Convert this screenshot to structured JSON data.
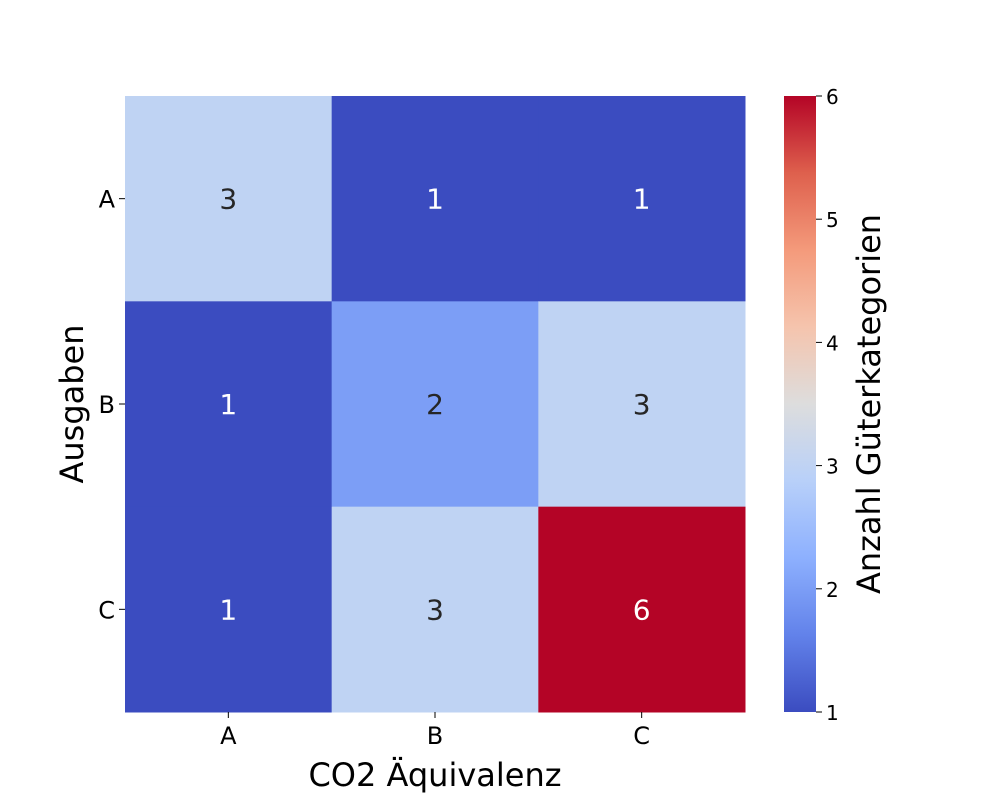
{
  "chart_data": {
    "type": "heatmap",
    "title": "",
    "xlabel": "CO2 Äquivalenz",
    "ylabel": "Ausgaben",
    "x_categories": [
      "A",
      "B",
      "C"
    ],
    "y_categories": [
      "A",
      "B",
      "C"
    ],
    "values": [
      [
        3,
        1,
        1
      ],
      [
        1,
        2,
        3
      ],
      [
        1,
        3,
        6
      ]
    ],
    "annotations": true,
    "colormap": "coolwarm",
    "vmin": 1,
    "vmax": 6,
    "colorbar": {
      "label": "Anzahl Güterkategorien",
      "ticks": [
        1,
        2,
        3,
        4,
        5,
        6
      ],
      "placement": "right"
    },
    "grid": false,
    "legend": "none"
  }
}
